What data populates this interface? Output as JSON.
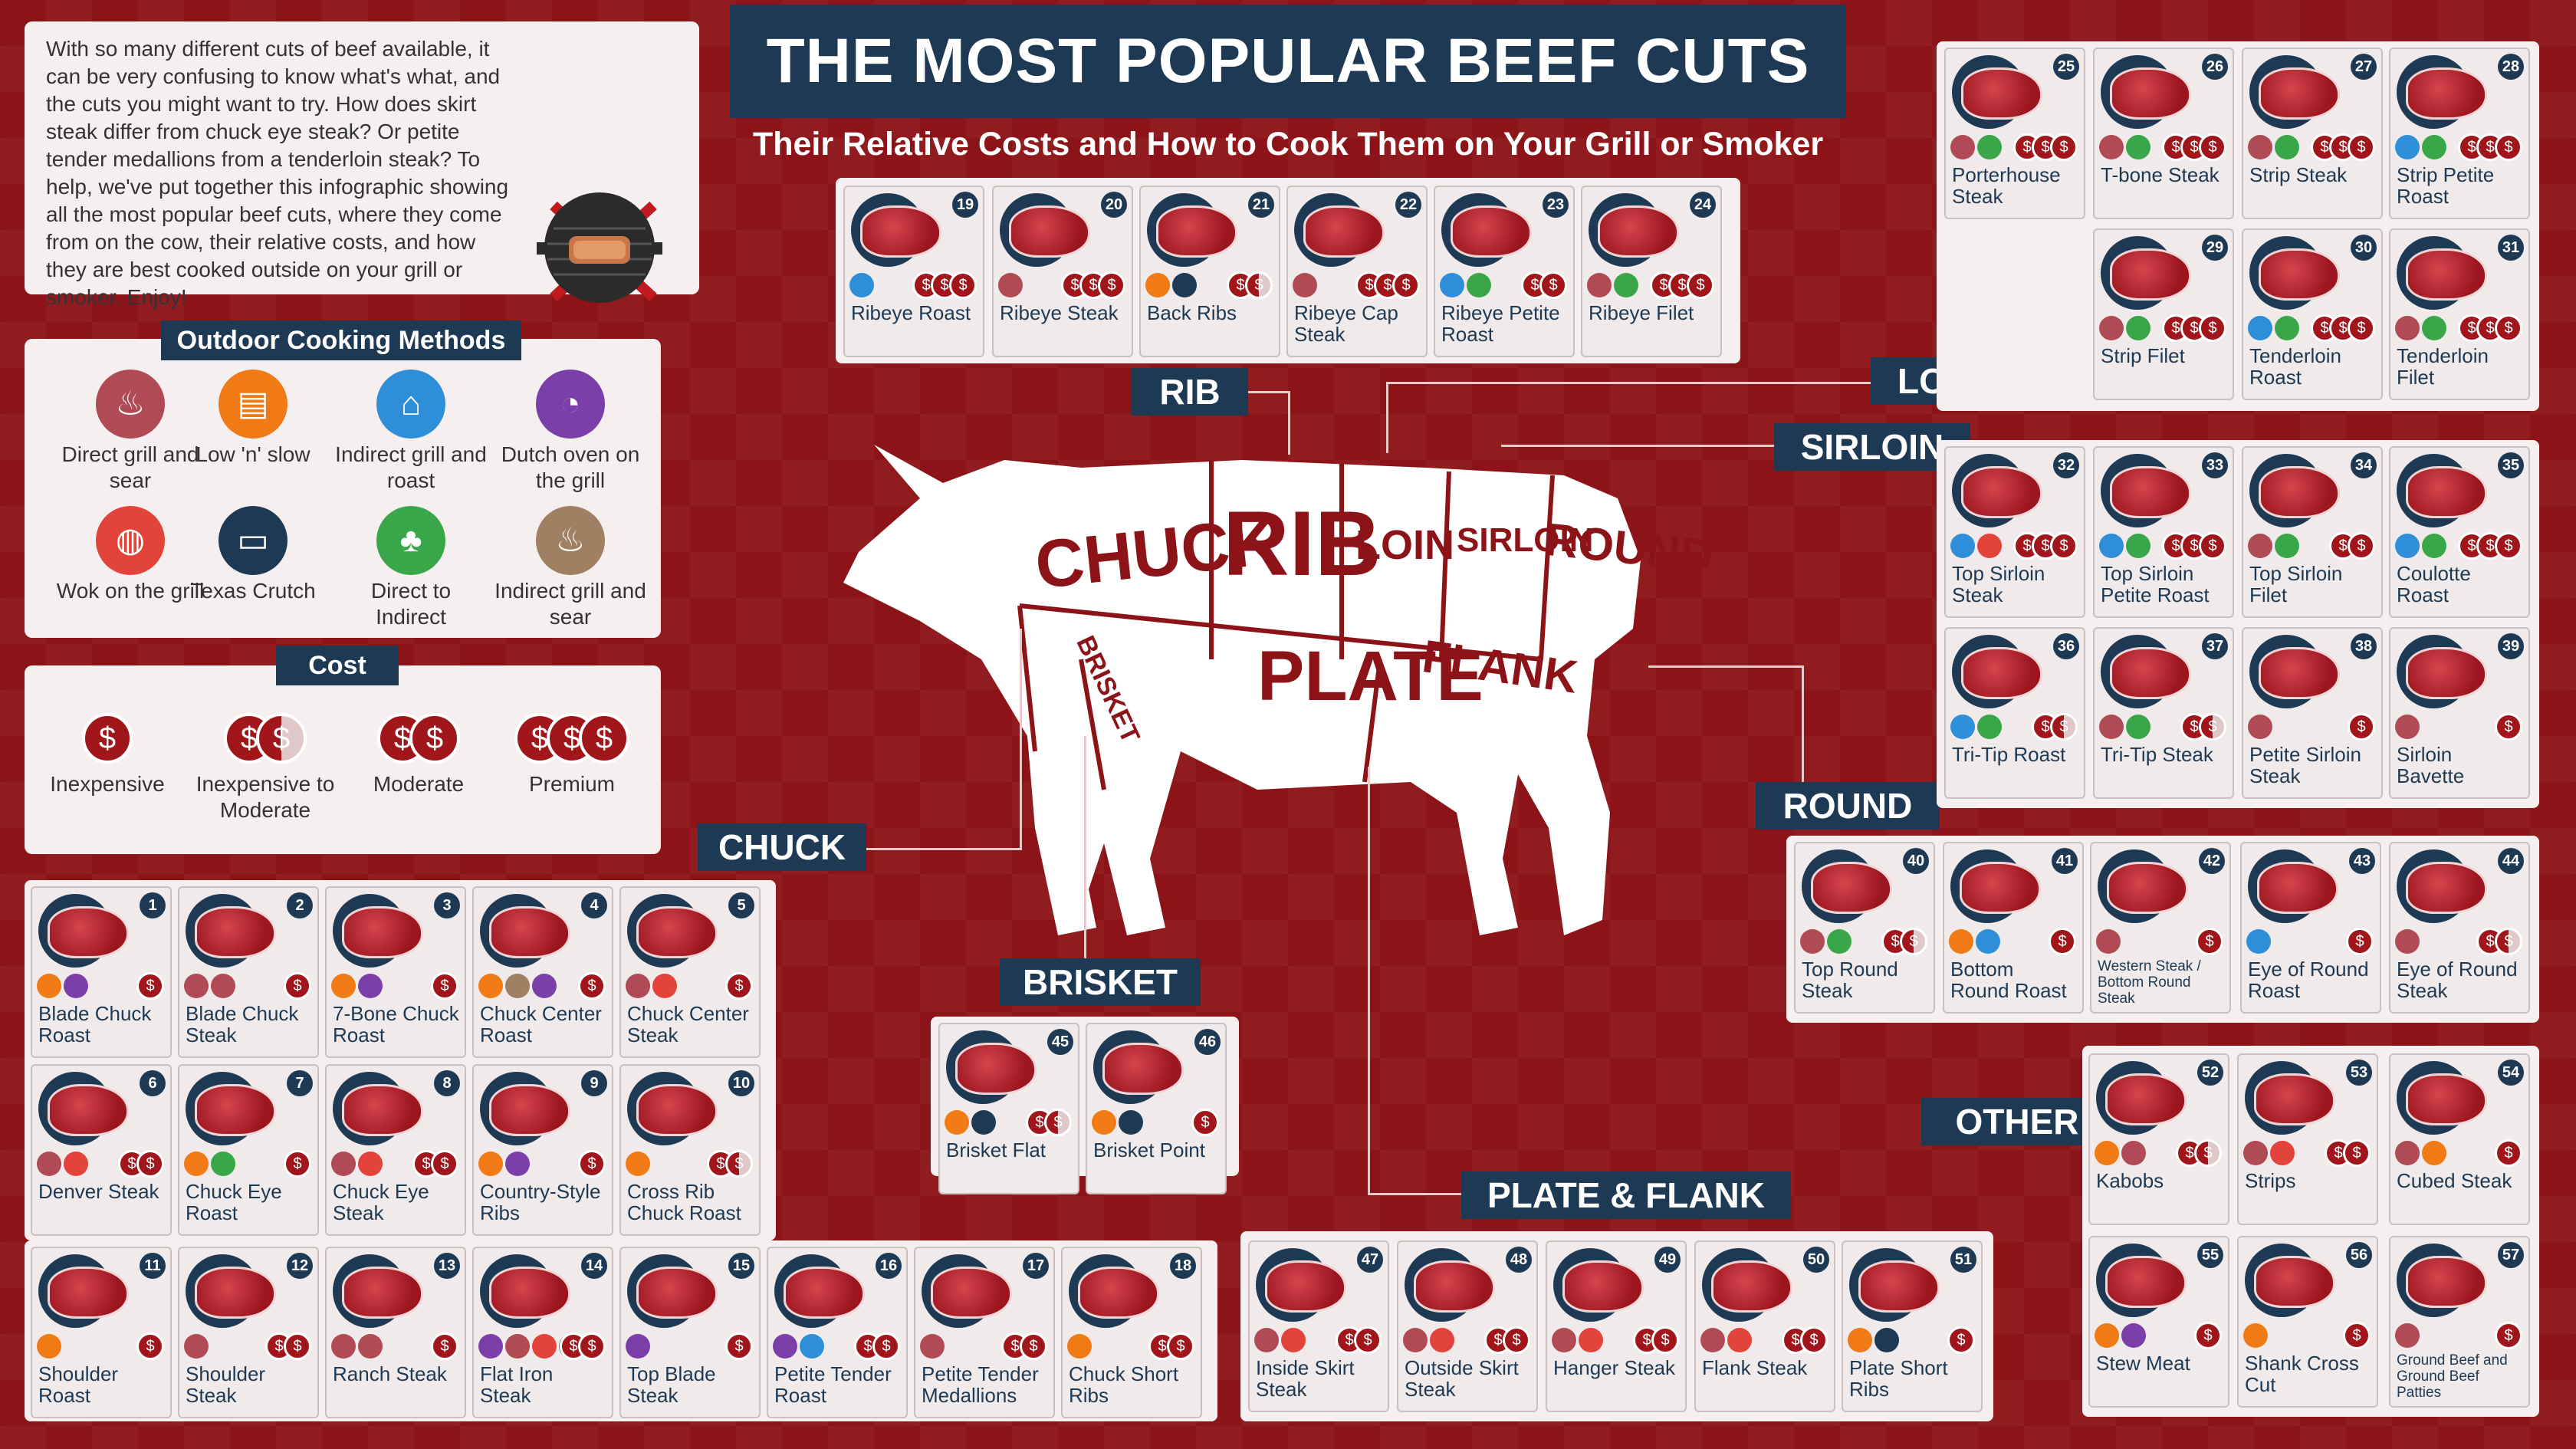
{
  "title": "THE MOST POPULAR BEEF CUTS",
  "subtitle": "Their Relative Costs and How to Cook Them on Your Grill or Smoker",
  "intro": "With so many different cuts of beef available, it can be very confusing to know what's what, and the cuts you might want to try. How does skirt steak differ from chuck eye steak? Or petite tender medallions from a tenderloin steak? To help, we've put together this infographic showing all the most popular beef cuts, where they come from on the cow, their relative costs, and how they are best cooked outside on your grill or smoker. Enjoy!",
  "methods": {
    "heading": "Outdoor Cooking Methods",
    "items": [
      {
        "label": "Direct grill and sear",
        "color": "#b04a55"
      },
      {
        "label": "Low 'n' slow",
        "color": "#f07a16"
      },
      {
        "label": "Indirect grill and roast",
        "color": "#2e8fd8"
      },
      {
        "label": "Dutch oven on the grill",
        "color": "#7a3fa8"
      },
      {
        "label": "Wok on the grill",
        "color": "#e2433a"
      },
      {
        "label": "Texas Crutch",
        "color": "#1e3954"
      },
      {
        "label": "Direct to Indirect",
        "color": "#3aa64a"
      },
      {
        "label": "Indirect grill and sear",
        "color": "#a08063"
      }
    ]
  },
  "cost": {
    "heading": "Cost",
    "items": [
      {
        "label": "Inexpensive",
        "coins": 1,
        "half": false
      },
      {
        "label": "Inexpensive to Moderate",
        "coins": 2,
        "half": true
      },
      {
        "label": "Moderate",
        "coins": 2,
        "half": false
      },
      {
        "label": "Premium",
        "coins": 3,
        "half": false
      }
    ]
  },
  "sections": {
    "rib": "RIB",
    "loin": "LOIN",
    "sirloin": "SIRLOIN",
    "round": "ROUND",
    "chuck": "CHUCK",
    "brisket": "BRISKET",
    "plate_flank": "PLATE & FLANK",
    "other": "OTHER"
  },
  "cow_labels": {
    "chuck": "CHUCK",
    "rib": "RIB",
    "loin": "LOIN",
    "sirloin": "SIRLOIN",
    "round": "ROUND",
    "brisket": "BRISKET",
    "plate": "PLATE",
    "flank": "FLANK"
  },
  "cuts": [
    {
      "n": "1",
      "name": "Blade Chuck Roast",
      "icons": [
        "#f07a16",
        "#7a3fa8"
      ],
      "cost": "1"
    },
    {
      "n": "2",
      "name": "Blade Chuck Steak",
      "icons": [
        "#b04a55",
        "#b04a55"
      ],
      "cost": "1"
    },
    {
      "n": "3",
      "name": "7-Bone Chuck Roast",
      "icons": [
        "#f07a16",
        "#7a3fa8"
      ],
      "cost": "1"
    },
    {
      "n": "4",
      "name": "Chuck Center Roast",
      "icons": [
        "#f07a16",
        "#a08063",
        "#7a3fa8"
      ],
      "cost": "1"
    },
    {
      "n": "5",
      "name": "Chuck Center Steak",
      "icons": [
        "#b04a55",
        "#e2433a"
      ],
      "cost": "1"
    },
    {
      "n": "6",
      "name": "Denver Steak",
      "icons": [
        "#b04a55",
        "#e2433a"
      ],
      "cost": "2"
    },
    {
      "n": "7",
      "name": "Chuck Eye Roast",
      "icons": [
        "#f07a16",
        "#3aa64a"
      ],
      "cost": "1"
    },
    {
      "n": "8",
      "name": "Chuck Eye Steak",
      "icons": [
        "#b04a55",
        "#e2433a"
      ],
      "cost": "2"
    },
    {
      "n": "9",
      "name": "Country-Style Ribs",
      "icons": [
        "#f07a16",
        "#7a3fa8"
      ],
      "cost": "1"
    },
    {
      "n": "10",
      "name": "Cross Rib Chuck Roast",
      "icons": [
        "#f07a16"
      ],
      "cost": "2h"
    },
    {
      "n": "11",
      "name": "Shoulder Roast",
      "icons": [
        "#f07a16"
      ],
      "cost": "1"
    },
    {
      "n": "12",
      "name": "Shoulder Steak",
      "icons": [
        "#b04a55"
      ],
      "cost": "2"
    },
    {
      "n": "13",
      "name": "Ranch Steak",
      "icons": [
        "#b04a55",
        "#b04a55"
      ],
      "cost": "1"
    },
    {
      "n": "14",
      "name": "Flat Iron Steak",
      "icons": [
        "#7a3fa8",
        "#b04a55",
        "#e2433a",
        "#3aa64a"
      ],
      "cost": "2"
    },
    {
      "n": "15",
      "name": "Top Blade Steak",
      "icons": [
        "#7a3fa8"
      ],
      "cost": "1"
    },
    {
      "n": "16",
      "name": "Petite Tender Roast",
      "icons": [
        "#7a3fa8",
        "#2e8fd8"
      ],
      "cost": "2"
    },
    {
      "n": "17",
      "name": "Petite Tender Medallions",
      "icons": [
        "#b04a55"
      ],
      "cost": "2"
    },
    {
      "n": "18",
      "name": "Chuck Short Ribs",
      "icons": [
        "#f07a16"
      ],
      "cost": "2"
    },
    {
      "n": "19",
      "name": "Ribeye Roast",
      "icons": [
        "#2e8fd8"
      ],
      "cost": "3"
    },
    {
      "n": "20",
      "name": "Ribeye Steak",
      "icons": [
        "#b04a55"
      ],
      "cost": "3"
    },
    {
      "n": "21",
      "name": "Back Ribs",
      "icons": [
        "#f07a16",
        "#1e3954"
      ],
      "cost": "2h"
    },
    {
      "n": "22",
      "name": "Ribeye Cap Steak",
      "icons": [
        "#b04a55"
      ],
      "cost": "3"
    },
    {
      "n": "23",
      "name": "Ribeye Petite Roast",
      "icons": [
        "#2e8fd8",
        "#3aa64a"
      ],
      "cost": "2"
    },
    {
      "n": "24",
      "name": "Ribeye Filet",
      "icons": [
        "#b04a55",
        "#3aa64a"
      ],
      "cost": "3"
    },
    {
      "n": "25",
      "name": "Porterhouse Steak",
      "icons": [
        "#b04a55",
        "#3aa64a"
      ],
      "cost": "3"
    },
    {
      "n": "26",
      "name": "T-bone Steak",
      "icons": [
        "#b04a55",
        "#3aa64a"
      ],
      "cost": "3"
    },
    {
      "n": "27",
      "name": "Strip Steak",
      "icons": [
        "#b04a55",
        "#3aa64a"
      ],
      "cost": "3"
    },
    {
      "n": "28",
      "name": "Strip Petite Roast",
      "icons": [
        "#2e8fd8",
        "#3aa64a"
      ],
      "cost": "3"
    },
    {
      "n": "29",
      "name": "Strip Filet",
      "icons": [
        "#b04a55",
        "#3aa64a"
      ],
      "cost": "3"
    },
    {
      "n": "30",
      "name": "Tenderloin Roast",
      "icons": [
        "#2e8fd8",
        "#3aa64a"
      ],
      "cost": "3"
    },
    {
      "n": "31",
      "name": "Tenderloin Filet",
      "icons": [
        "#b04a55",
        "#3aa64a"
      ],
      "cost": "3"
    },
    {
      "n": "32",
      "name": "Top Sirloin Steak",
      "icons": [
        "#2e8fd8",
        "#e2433a"
      ],
      "cost": "3"
    },
    {
      "n": "33",
      "name": "Top Sirloin Petite Roast",
      "icons": [
        "#2e8fd8",
        "#3aa64a"
      ],
      "cost": "3"
    },
    {
      "n": "34",
      "name": "Top Sirloin Filet",
      "icons": [
        "#b04a55",
        "#3aa64a"
      ],
      "cost": "2"
    },
    {
      "n": "35",
      "name": "Coulotte Roast",
      "icons": [
        "#2e8fd8",
        "#3aa64a"
      ],
      "cost": "3"
    },
    {
      "n": "36",
      "name": "Tri-Tip Roast",
      "icons": [
        "#2e8fd8",
        "#3aa64a"
      ],
      "cost": "2h"
    },
    {
      "n": "37",
      "name": "Tri-Tip Steak",
      "icons": [
        "#b04a55",
        "#3aa64a"
      ],
      "cost": "2h"
    },
    {
      "n": "38",
      "name": "Petite Sirloin Steak",
      "icons": [
        "#b04a55"
      ],
      "cost": "1"
    },
    {
      "n": "39",
      "name": "Sirloin Bavette",
      "icons": [
        "#b04a55"
      ],
      "cost": "1"
    },
    {
      "n": "40",
      "name": "Top Round Steak",
      "icons": [
        "#b04a55",
        "#3aa64a"
      ],
      "cost": "2h"
    },
    {
      "n": "41",
      "name": "Bottom Round Roast",
      "icons": [
        "#f07a16",
        "#2e8fd8"
      ],
      "cost": "1"
    },
    {
      "n": "42",
      "name": "Western Steak / Bottom Round Steak",
      "icons": [
        "#b04a55"
      ],
      "cost": "1",
      "small": true
    },
    {
      "n": "43",
      "name": "Eye of Round Roast",
      "icons": [
        "#2e8fd8"
      ],
      "cost": "1"
    },
    {
      "n": "44",
      "name": "Eye of Round Steak",
      "icons": [
        "#b04a55"
      ],
      "cost": "2h"
    },
    {
      "n": "45",
      "name": "Brisket Flat",
      "icons": [
        "#f07a16",
        "#1e3954"
      ],
      "cost": "2h"
    },
    {
      "n": "46",
      "name": "Brisket Point",
      "icons": [
        "#f07a16",
        "#1e3954"
      ],
      "cost": "1"
    },
    {
      "n": "47",
      "name": "Inside Skirt Steak",
      "icons": [
        "#b04a55",
        "#e2433a"
      ],
      "cost": "2"
    },
    {
      "n": "48",
      "name": "Outside Skirt Steak",
      "icons": [
        "#b04a55",
        "#e2433a"
      ],
      "cost": "2"
    },
    {
      "n": "49",
      "name": "Hanger Steak",
      "icons": [
        "#b04a55",
        "#e2433a"
      ],
      "cost": "2"
    },
    {
      "n": "50",
      "name": "Flank Steak",
      "icons": [
        "#b04a55",
        "#e2433a"
      ],
      "cost": "2"
    },
    {
      "n": "51",
      "name": "Plate Short Ribs",
      "icons": [
        "#f07a16",
        "#1e3954"
      ],
      "cost": "1"
    },
    {
      "n": "52",
      "name": "Kabobs",
      "icons": [
        "#f07a16",
        "#b04a55"
      ],
      "cost": "2h"
    },
    {
      "n": "53",
      "name": "Strips",
      "icons": [
        "#b04a55",
        "#e2433a"
      ],
      "cost": "2"
    },
    {
      "n": "54",
      "name": "Cubed Steak",
      "icons": [
        "#b04a55",
        "#f07a16"
      ],
      "cost": "1"
    },
    {
      "n": "55",
      "name": "Stew Meat",
      "icons": [
        "#f07a16",
        "#7a3fa8"
      ],
      "cost": "1"
    },
    {
      "n": "56",
      "name": "Shank Cross Cut",
      "icons": [
        "#f07a16"
      ],
      "cost": "1"
    },
    {
      "n": "57",
      "name": "Ground Beef and Ground Beef Patties",
      "icons": [
        "#b04a55"
      ],
      "cost": "1",
      "small": true
    }
  ]
}
